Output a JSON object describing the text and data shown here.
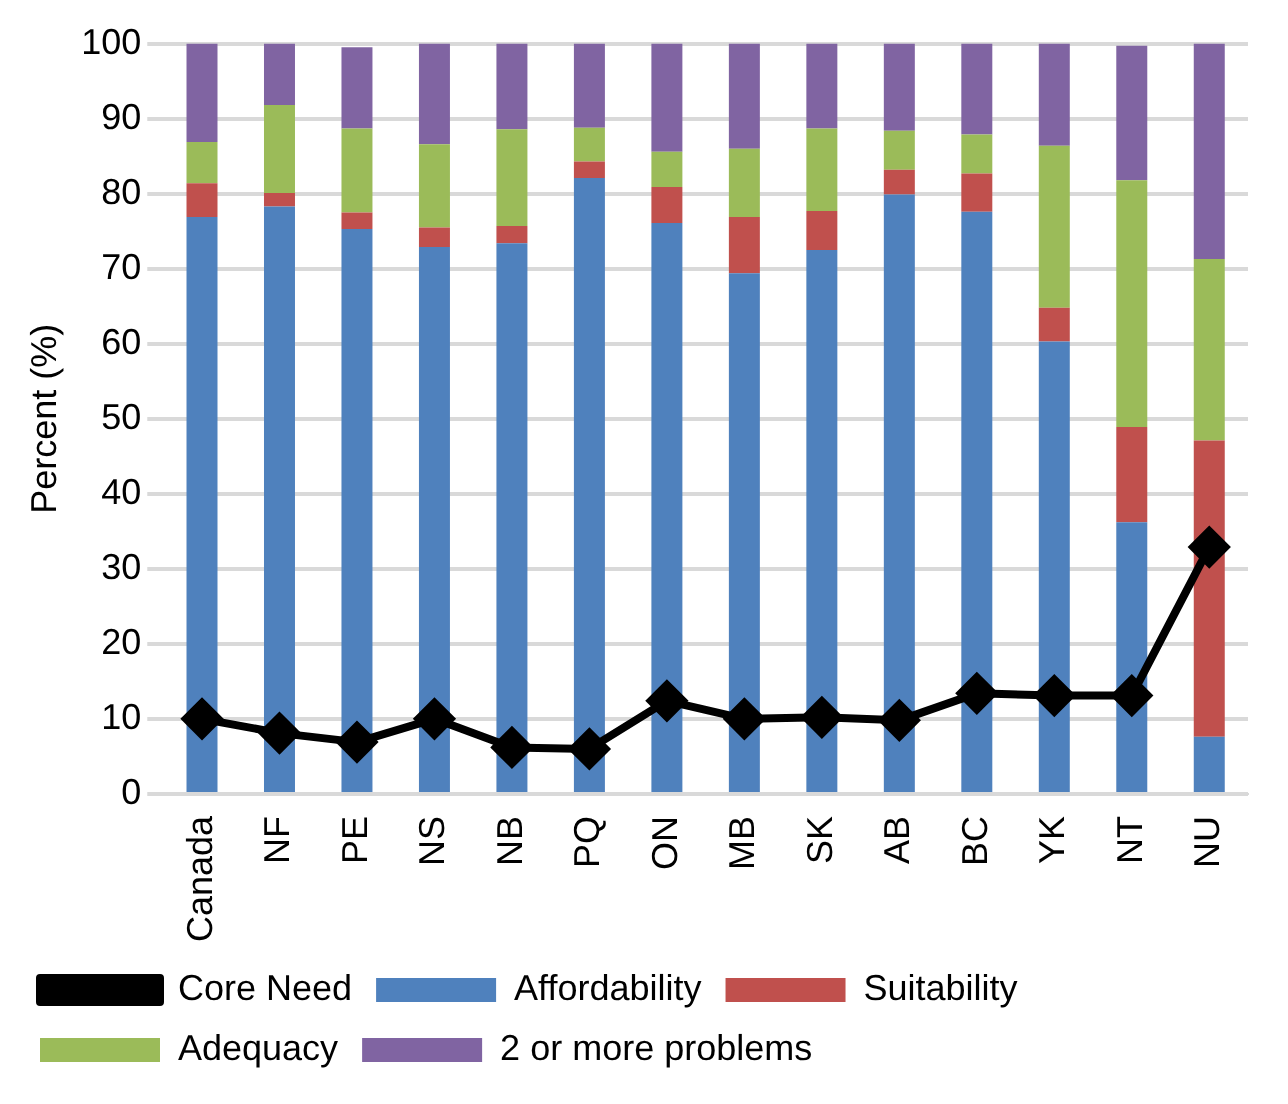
{
  "chart_data": {
    "type": "bar",
    "stacked": true,
    "ylabel": "Percent (%)",
    "categories": [
      "Canada",
      "NF",
      "PE",
      "NS",
      "NB",
      "PQ",
      "ON",
      "MB",
      "SK",
      "AB",
      "BC",
      "YK",
      "NT",
      "NU"
    ],
    "series": [
      {
        "name": "Affordability",
        "color": "#4f81bd",
        "values": [
          76.9,
          78.3,
          75.3,
          72.9,
          73.4,
          82.1,
          76.1,
          69.4,
          72.5,
          79.9,
          77.6,
          60.3,
          36.2,
          7.6
        ]
      },
      {
        "name": "Suitability",
        "color": "#c0504d",
        "values": [
          4.5,
          1.8,
          2.2,
          2.6,
          2.3,
          2.2,
          4.8,
          7.5,
          5.2,
          3.3,
          5.1,
          4.5,
          12.7,
          39.5
        ]
      },
      {
        "name": "Adequacy",
        "color": "#9bbb59",
        "values": [
          5.5,
          11.7,
          11.2,
          11.1,
          12.9,
          4.5,
          4.7,
          9.1,
          11.0,
          5.2,
          5.2,
          21.6,
          32.9,
          24.2
        ]
      },
      {
        "name": "2 or more problems",
        "color": "#8064a2",
        "values": [
          13.1,
          8.2,
          10.8,
          13.4,
          11.4,
          11.2,
          14.4,
          14.0,
          11.3,
          11.6,
          12.1,
          13.6,
          17.9,
          28.7
        ]
      },
      {
        "name": "Core Need",
        "type": "line",
        "color": "#000000",
        "marker": "diamond",
        "values": [
          10.0,
          8.1,
          6.9,
          10.0,
          6.2,
          6.0,
          12.4,
          10.0,
          10.2,
          9.8,
          13.4,
          13.1,
          13.1,
          32.9
        ]
      }
    ],
    "ylim": [
      0,
      100
    ],
    "yticks": [
      0,
      10,
      20,
      30,
      40,
      50,
      60,
      70,
      80,
      90,
      100
    ],
    "grid": "y",
    "legend": "bottom"
  }
}
